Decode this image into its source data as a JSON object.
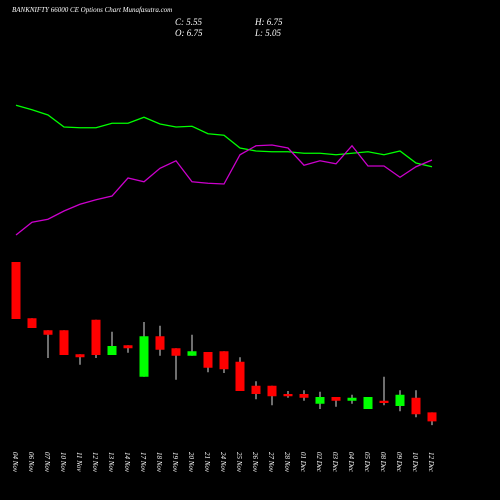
{
  "chart_data": {
    "type": "candlestick",
    "title": "BANKNIFTY 66000 CE Options Chart Munafasutra.com",
    "info": {
      "close": "C: 5.55",
      "high": "H: 6.75",
      "open": "O: 6.75",
      "low": "L: 5.05"
    },
    "up_color": "#00ff00",
    "down_color": "#ff0000",
    "categories": [
      "04 Nov",
      "06 Nov",
      "07 Nov",
      "10 Nov",
      "11 Nov",
      "12 Nov",
      "13 Nov",
      "14 Nov",
      "17 Nov",
      "18 Nov",
      "19 Nov",
      "20 Nov",
      "21 Nov",
      "24 Nov",
      "25 Nov",
      "26 Nov",
      "27 Nov",
      "28 Nov",
      "01 Dec",
      "02 Dec",
      "03 Dec",
      "04 Dec",
      "05 Dec",
      "08 Dec",
      "09 Dec",
      "10 Dec",
      "12 Dec"
    ],
    "open": [
      26.8,
      19.3,
      17.7,
      17.7,
      14.5,
      19.1,
      14.4,
      15.7,
      11.5,
      16.9,
      15.3,
      14.3,
      14.8,
      14.9,
      13.5,
      10.3,
      10.3,
      9.2,
      9.2,
      7.9,
      8.8,
      8.3,
      7.2,
      8.3,
      7.6,
      8.7,
      6.75
    ],
    "high": [
      26.8,
      19.3,
      17.7,
      17.7,
      14.5,
      19.1,
      17.5,
      15.7,
      18.8,
      18.3,
      15.3,
      17.1,
      14.8,
      14.9,
      14.1,
      10.9,
      10.3,
      9.6,
      9.7,
      9.5,
      8.8,
      9.1,
      8.8,
      11.5,
      9.7,
      9.7,
      6.75
    ],
    "low": [
      19.2,
      18.0,
      14.0,
      14.4,
      13.1,
      14.0,
      14.4,
      14.7,
      11.5,
      14.3,
      11.1,
      14.3,
      12.1,
      12.0,
      9.6,
      8.5,
      7.7,
      8.7,
      8.3,
      7.2,
      7.5,
      7.9,
      7.2,
      7.7,
      6.9,
      6.1,
      5.05
    ],
    "close": [
      19.2,
      18.0,
      17.1,
      14.4,
      14.1,
      14.4,
      15.6,
      15.3,
      16.9,
      15.1,
      14.3,
      14.9,
      12.7,
      12.5,
      9.6,
      9.2,
      8.9,
      8.9,
      8.7,
      8.8,
      8.3,
      8.7,
      8.8,
      8.0,
      9.1,
      6.5,
      5.55
    ],
    "series": [
      {
        "color": "#00ff00",
        "values": [
          47.7,
          47.1,
          46.4,
          44.8,
          44.7,
          44.7,
          45.3,
          45.3,
          46.1,
          45.2,
          44.8,
          44.9,
          43.9,
          43.7,
          42.0,
          41.6,
          41.5,
          41.5,
          41.3,
          41.3,
          41.1,
          41.3,
          41.5,
          41.1,
          41.6,
          40.0,
          39.5
        ]
      },
      {
        "color": "#cc00cc",
        "values": [
          30.4,
          32.1,
          32.5,
          33.6,
          34.5,
          35.1,
          35.6,
          38.0,
          37.5,
          39.3,
          40.3,
          37.5,
          37.3,
          37.2,
          41.1,
          42.3,
          42.4,
          42.0,
          39.7,
          40.3,
          39.9,
          42.3,
          39.6,
          39.6,
          38.1,
          39.5,
          40.4
        ]
      }
    ]
  }
}
